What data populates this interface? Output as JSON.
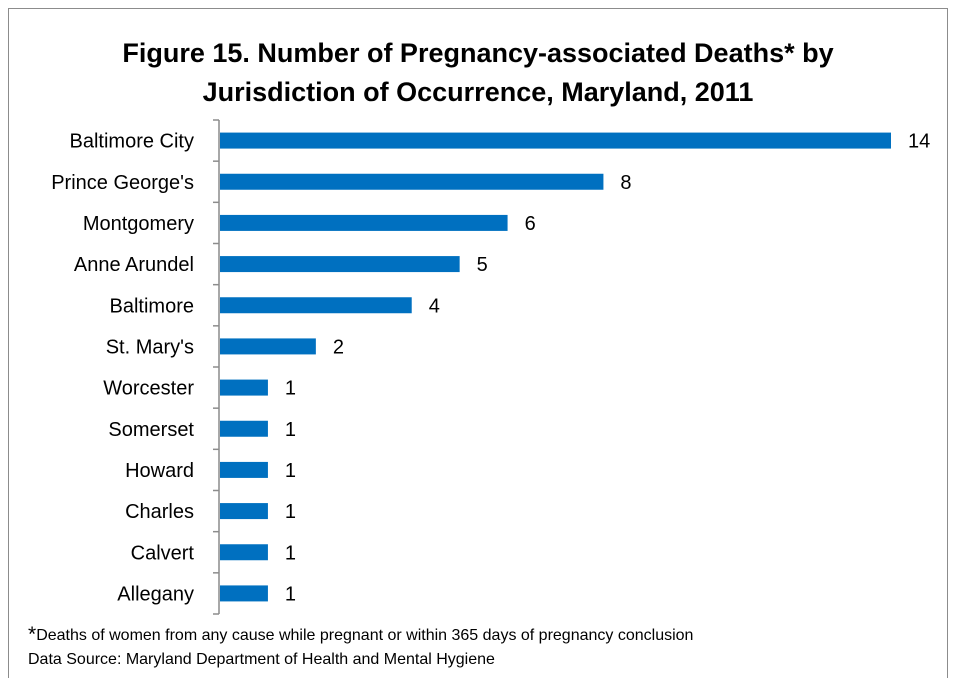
{
  "chart_data": {
    "type": "bar",
    "orientation": "horizontal",
    "title_lines": [
      "Figure 15. Number of Pregnancy-associated Deaths* by",
      "Jurisdiction of Occurrence, Maryland, 2011"
    ],
    "categories": [
      "Baltimore City",
      "Prince George's",
      "Montgomery",
      "Anne Arundel",
      "Baltimore",
      "St. Mary's",
      "Worcester",
      "Somerset",
      "Howard",
      "Charles",
      "Calvert",
      "Allegany"
    ],
    "values": [
      14,
      8,
      6,
      5,
      4,
      2,
      1,
      1,
      1,
      1,
      1,
      1
    ],
    "data_labels": [
      "14",
      "8",
      "6",
      "5",
      "4",
      "2",
      "1",
      "1",
      "1",
      "1",
      "1",
      "1"
    ],
    "xlim": [
      0,
      14
    ],
    "bar_color": "#0070c0",
    "grid": false,
    "legend": "none"
  },
  "footnote": {
    "marker": "*",
    "text": "Deaths of women from any cause while pregnant or within 365 days of pregnancy conclusion"
  },
  "source": "Data Source: Maryland Department of Health and Mental Hygiene"
}
